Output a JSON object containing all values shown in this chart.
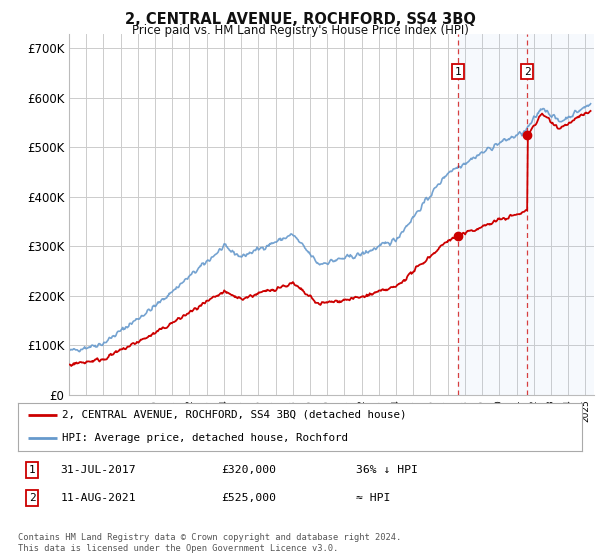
{
  "title": "2, CENTRAL AVENUE, ROCHFORD, SS4 3BQ",
  "subtitle": "Price paid vs. HM Land Registry's House Price Index (HPI)",
  "ylim": [
    0,
    730000
  ],
  "yticks": [
    0,
    100000,
    200000,
    300000,
    400000,
    500000,
    600000,
    700000
  ],
  "ytick_labels": [
    "£0",
    "£100K",
    "£200K",
    "£300K",
    "£400K",
    "£500K",
    "£600K",
    "£700K"
  ],
  "bg_color": "#ffffff",
  "grid_color": "#cccccc",
  "hpi_color": "#6699cc",
  "price_color": "#cc0000",
  "marker1_date": 2017.58,
  "marker1_price": 320000,
  "marker2_date": 2021.62,
  "marker2_price": 525000,
  "legend_line1": "2, CENTRAL AVENUE, ROCHFORD, SS4 3BQ (detached house)",
  "legend_line2": "HPI: Average price, detached house, Rochford",
  "footnote": "Contains HM Land Registry data © Crown copyright and database right 2024.\nThis data is licensed under the Open Government Licence v3.0.",
  "xmin": 1995.0,
  "xmax": 2025.5
}
